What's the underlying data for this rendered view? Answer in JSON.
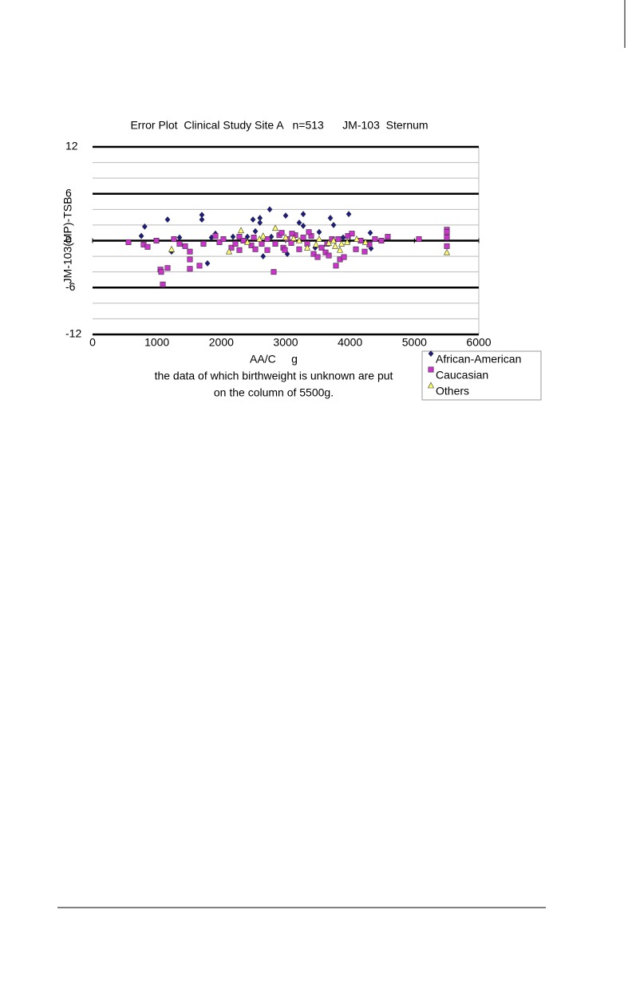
{
  "chart_data": {
    "type": "scatter",
    "title": "Error Plot  Clinical Study Site A   n=513      JM-103  Sternum",
    "x_label": "AA/C     g",
    "y_label": "JM-103(MP)-TSB",
    "annotation": [
      "the data of which birthweight is unknown are put",
      "on the column of 5500g."
    ],
    "xlim": [
      0,
      6000
    ],
    "xticks": [
      0,
      1000,
      2000,
      3000,
      4000,
      5000,
      6000
    ],
    "ylim": [
      -12,
      12
    ],
    "yticks": [
      -12,
      -6,
      0,
      6,
      12
    ],
    "minor_yticks": [
      -10,
      -8,
      -4,
      -2,
      2,
      4,
      8,
      10
    ],
    "grid": true,
    "legend": "bottom-right-outside",
    "series": [
      {
        "name": "African-American",
        "color": "#1a1a8c",
        "marker": "diamond",
        "x": [
          757,
          810,
          1165,
          1227,
          1698,
          1698,
          1785,
          2752,
          3000,
          3273,
          3273,
          3744,
          3694,
          3980,
          2600,
          2600,
          2492,
          3210,
          2650,
          1847,
          2182,
          2405,
          3025,
          3520,
          4326,
          4314,
          2777,
          1351,
          1909,
          2529,
          3458,
          3892
        ],
        "values": [
          0.6,
          1.8,
          2.7,
          -1.4,
          3.3,
          2.7,
          -2.9,
          4.0,
          3.2,
          3.4,
          1.9,
          2.0,
          2.9,
          3.4,
          2.9,
          2.3,
          2.7,
          2.3,
          -2.0,
          0.4,
          0.5,
          0.5,
          -1.7,
          1.1,
          -1.0,
          1.0,
          0.5,
          0.4,
          0.9,
          1.2,
          -0.9,
          0.4
        ]
      },
      {
        "name": "Caucasian",
        "color": "#cc33cc",
        "marker": "square",
        "x": [
          558,
          793,
          855,
          992,
          1054,
          1066,
          1091,
          1165,
          1264,
          1351,
          1438,
          1512,
          1512,
          1512,
          1661,
          1723,
          1909,
          1971,
          2033,
          2157,
          2219,
          2281,
          2343,
          2467,
          2529,
          2628,
          2715,
          2814,
          2839,
          2901,
          2938,
          2963,
          3025,
          3087,
          3149,
          3210,
          3273,
          3335,
          3397,
          3434,
          3496,
          3558,
          3620,
          3670,
          3719,
          3781,
          3843,
          3905,
          3967,
          4029,
          4091,
          4165,
          4227,
          4301,
          4388,
          4487,
          4586,
          5070,
          5504,
          5504,
          5504,
          5504,
          2281,
          2505,
          2715,
          2988,
          3099,
          3360,
          3645,
          3818
        ],
        "values": [
          -0.2,
          -0.5,
          -0.8,
          0,
          -3.7,
          -4.0,
          -5.6,
          -3.5,
          0.2,
          -0.4,
          -0.7,
          -1.4,
          -2.4,
          -3.6,
          -3.2,
          -0.4,
          0.6,
          -0.2,
          0.2,
          -0.9,
          -0.4,
          0.5,
          0,
          -0.6,
          -1.1,
          -0.4,
          0.2,
          -4.0,
          -0.4,
          0.7,
          1.0,
          -0.9,
          0.2,
          -0.3,
          0.7,
          -1.1,
          0.4,
          -0.4,
          0.6,
          -1.7,
          -2.1,
          -0.9,
          -1.5,
          -1.9,
          0.2,
          -3.2,
          -2.4,
          -2.1,
          0.6,
          0.9,
          -1.1,
          0,
          -1.4,
          -0.5,
          0.2,
          0,
          0.5,
          0.2,
          1.4,
          1.1,
          0.4,
          -0.7,
          -1.2,
          0.4,
          -1.2,
          -1.2,
          0.9,
          1.1,
          -0.4,
          0.2
        ]
      },
      {
        "name": "Others",
        "color": "#ffff66",
        "marker": "triangle",
        "x": [
          1227,
          2120,
          2306,
          2839,
          2650,
          2405,
          3000,
          3210,
          3335,
          3471,
          3520,
          3670,
          3744,
          3769,
          3843,
          3868,
          3955,
          4103,
          4239,
          5504,
          2591,
          3124
        ],
        "values": [
          -1.1,
          -1.4,
          1.3,
          1.6,
          0.6,
          -0.2,
          0.4,
          0,
          -0.9,
          -0.5,
          0.2,
          -0.3,
          0,
          -0.7,
          -1.2,
          -0.4,
          -0.2,
          0.2,
          -0.2,
          -1.5,
          0.2,
          0.3
        ]
      }
    ]
  }
}
